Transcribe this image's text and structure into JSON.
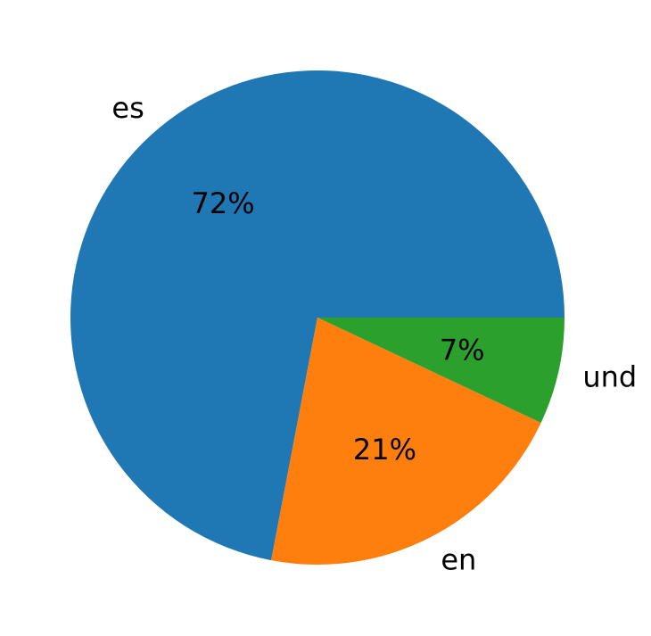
{
  "chart_data": {
    "type": "pie",
    "slices": [
      {
        "label": "es",
        "value": 72,
        "value_label": "72%",
        "color": "#1f77b4"
      },
      {
        "label": "en",
        "value": 21,
        "value_label": "21%",
        "color": "#ff7f0e"
      },
      {
        "label": "und",
        "value": 7,
        "value_label": "7%",
        "color": "#2ca02c"
      }
    ],
    "start_angle_deg": 0,
    "direction": "counterclockwise"
  }
}
